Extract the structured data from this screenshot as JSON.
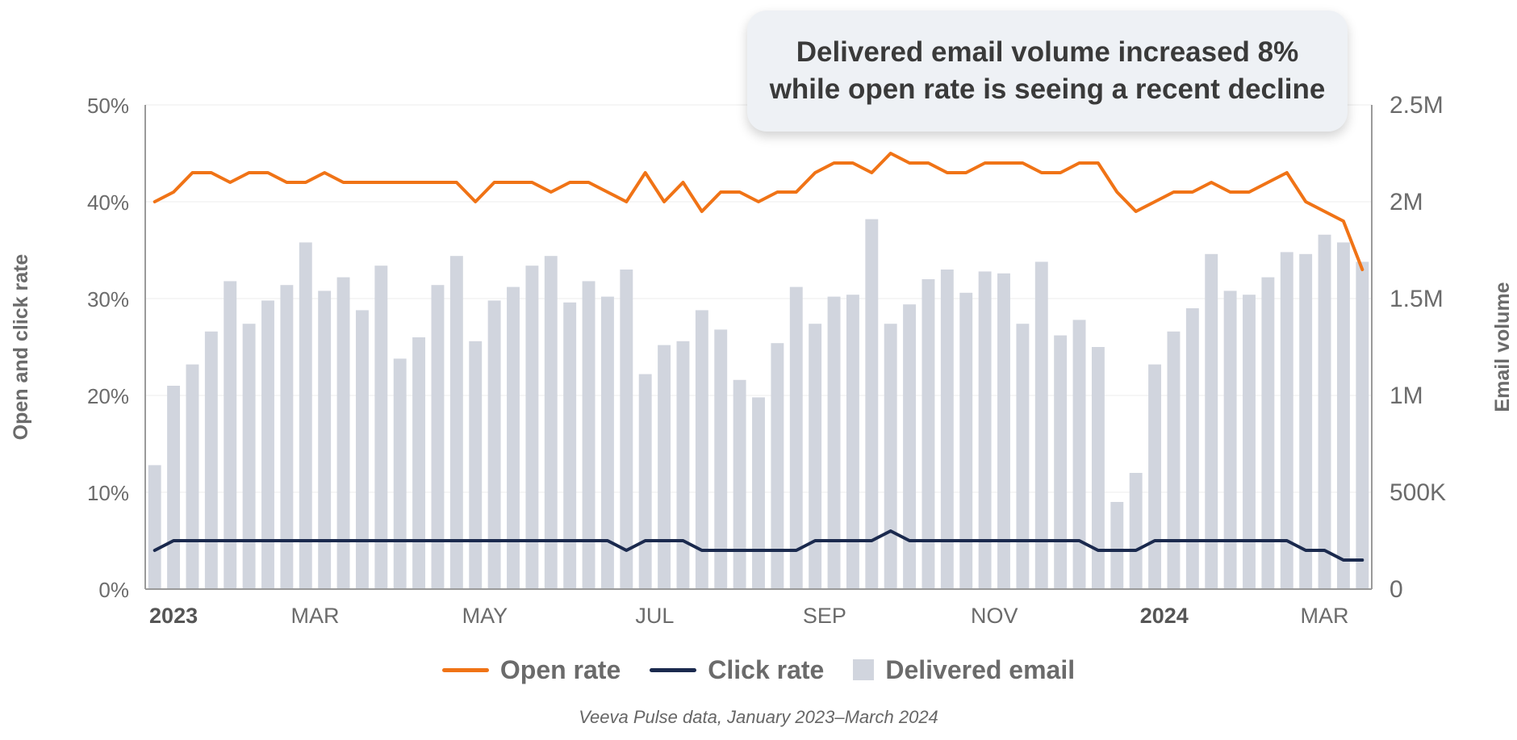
{
  "callout": {
    "line1": "Delivered email volume increased 8%",
    "line2": "while open rate is seeing a recent decline"
  },
  "legend": {
    "open_rate": "Open rate",
    "click_rate": "Click rate",
    "delivered": "Delivered email"
  },
  "source": "Veeva Pulse data, January 2023–March 2024",
  "colors": {
    "open_rate": "#f07316",
    "click_rate": "#1b2a4e",
    "delivered": "#d1d5de",
    "axis_text": "#6b6b6b",
    "grid": "#ececec"
  },
  "chart_data": {
    "type": "bar+line",
    "x_unit": "week",
    "x_tick_labels": [
      {
        "label": "2023",
        "bold": true,
        "index": 1
      },
      {
        "label": "MAR",
        "bold": false,
        "index": 8.5
      },
      {
        "label": "MAY",
        "bold": false,
        "index": 17.5
      },
      {
        "label": "JUL",
        "bold": false,
        "index": 26.5
      },
      {
        "label": "SEP",
        "bold": false,
        "index": 35.5
      },
      {
        "label": "NOV",
        "bold": false,
        "index": 44.5
      },
      {
        "label": "2024",
        "bold": true,
        "index": 53.5
      },
      {
        "label": "MAR",
        "bold": false,
        "index": 62
      }
    ],
    "left_axis": {
      "label": "Open and click rate",
      "ticks": [
        "0%",
        "10%",
        "20%",
        "30%",
        "40%",
        "50%"
      ],
      "range": [
        0,
        50
      ]
    },
    "right_axis": {
      "label": "Email volume",
      "ticks": [
        "0",
        "500K",
        "1M",
        "1.5M",
        "2M",
        "2.5M"
      ],
      "range": [
        0,
        2500000
      ]
    },
    "grid": true,
    "legend_position": "bottom",
    "series": [
      {
        "name": "Delivered email",
        "type": "bar",
        "axis": "right",
        "values": [
          640000,
          1050000,
          1160000,
          1330000,
          1590000,
          1370000,
          1490000,
          1570000,
          1790000,
          1540000,
          1610000,
          1440000,
          1670000,
          1190000,
          1300000,
          1570000,
          1720000,
          1280000,
          1490000,
          1560000,
          1670000,
          1720000,
          1480000,
          1590000,
          1510000,
          1650000,
          1110000,
          1260000,
          1280000,
          1440000,
          1340000,
          1080000,
          990000,
          1270000,
          1560000,
          1370000,
          1510000,
          1520000,
          1910000,
          1370000,
          1470000,
          1600000,
          1650000,
          1530000,
          1640000,
          1630000,
          1370000,
          1690000,
          1310000,
          1390000,
          1250000,
          450000,
          600000,
          1160000,
          1330000,
          1450000,
          1730000,
          1540000,
          1520000,
          1610000,
          1740000,
          1730000,
          1830000,
          1790000,
          1690000
        ]
      },
      {
        "name": "Open rate",
        "type": "line",
        "axis": "left",
        "values": [
          40,
          41,
          43,
          43,
          42,
          43,
          43,
          42,
          42,
          43,
          42,
          42,
          42,
          42,
          42,
          42,
          42,
          40,
          42,
          42,
          42,
          41,
          42,
          42,
          41,
          40,
          43,
          40,
          42,
          39,
          41,
          41,
          40,
          41,
          41,
          43,
          44,
          44,
          43,
          45,
          44,
          44,
          43,
          43,
          44,
          44,
          44,
          43,
          43,
          44,
          44,
          41,
          39,
          40,
          41,
          41,
          42,
          41,
          41,
          42,
          43,
          40,
          39,
          38,
          33
        ]
      },
      {
        "name": "Click rate",
        "type": "line",
        "axis": "left",
        "values": [
          4,
          5,
          5,
          5,
          5,
          5,
          5,
          5,
          5,
          5,
          5,
          5,
          5,
          5,
          5,
          5,
          5,
          5,
          5,
          5,
          5,
          5,
          5,
          5,
          5,
          4,
          5,
          5,
          5,
          4,
          4,
          4,
          4,
          4,
          4,
          5,
          5,
          5,
          5,
          6,
          5,
          5,
          5,
          5,
          5,
          5,
          5,
          5,
          5,
          5,
          4,
          4,
          4,
          5,
          5,
          5,
          5,
          5,
          5,
          5,
          5,
          4,
          4,
          3,
          3
        ]
      }
    ]
  }
}
